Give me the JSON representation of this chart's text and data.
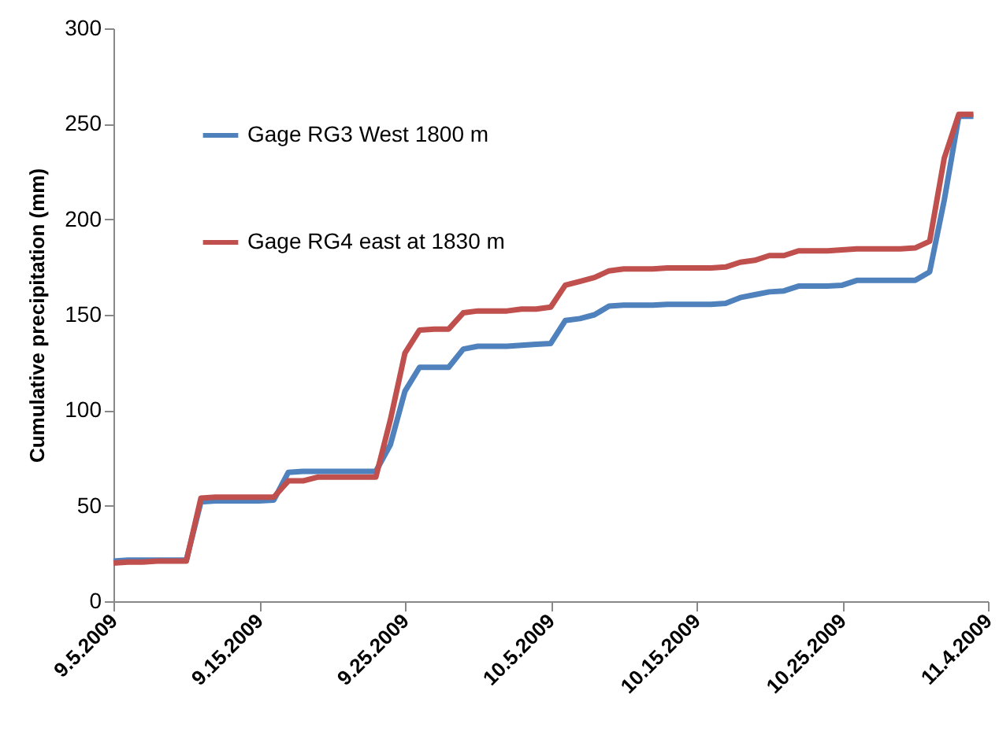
{
  "chart_data": {
    "type": "line",
    "ylabel": "Cumulative precipitation  (mm)",
    "x": [
      "2009-09-05",
      "2009-09-06",
      "2009-09-07",
      "2009-09-08",
      "2009-09-09",
      "2009-09-10",
      "2009-09-11",
      "2009-09-12",
      "2009-09-13",
      "2009-09-14",
      "2009-09-15",
      "2009-09-16",
      "2009-09-17",
      "2009-09-18",
      "2009-09-19",
      "2009-09-20",
      "2009-09-21",
      "2009-09-22",
      "2009-09-23",
      "2009-09-24",
      "2009-09-25",
      "2009-09-26",
      "2009-09-27",
      "2009-09-28",
      "2009-09-29",
      "2009-09-30",
      "2009-10-01",
      "2009-10-02",
      "2009-10-03",
      "2009-10-04",
      "2009-10-05",
      "2009-10-06",
      "2009-10-07",
      "2009-10-08",
      "2009-10-09",
      "2009-10-10",
      "2009-10-11",
      "2009-10-12",
      "2009-10-13",
      "2009-10-14",
      "2009-10-15",
      "2009-10-16",
      "2009-10-17",
      "2009-10-18",
      "2009-10-19",
      "2009-10-20",
      "2009-10-21",
      "2009-10-22",
      "2009-10-23",
      "2009-10-24",
      "2009-10-25",
      "2009-10-26",
      "2009-10-27",
      "2009-10-28",
      "2009-10-29",
      "2009-10-30",
      "2009-10-31",
      "2009-11-01",
      "2009-11-02",
      "2009-11-03"
    ],
    "series": [
      {
        "name": "Gage RG3 West 1800 m",
        "color": "#4f81bd",
        "values": [
          21,
          21.5,
          21.5,
          21.5,
          21.5,
          21.5,
          52,
          52.5,
          52.5,
          52.5,
          52.5,
          53,
          67.5,
          68,
          68,
          68,
          68,
          68,
          68,
          82,
          110,
          122.5,
          122.5,
          122.5,
          132,
          133.5,
          133.5,
          133.5,
          134,
          134.5,
          135,
          147,
          148,
          150,
          154.5,
          155,
          155,
          155,
          155.5,
          155.5,
          155.5,
          155.5,
          156,
          159,
          160.5,
          162,
          162.5,
          165,
          165,
          165,
          165.5,
          168,
          168,
          168,
          168,
          168,
          172.5,
          210,
          254,
          254
        ]
      },
      {
        "name": "Gage RG4 east at 1830 m",
        "color": "#c0504d",
        "values": [
          20,
          20.5,
          20.5,
          21,
          21,
          21,
          54,
          54.5,
          54.5,
          54.5,
          54.5,
          54.5,
          63,
          63,
          65,
          65,
          65,
          65,
          65,
          95,
          130,
          142,
          142.5,
          142.5,
          151,
          152,
          152,
          152,
          153,
          153,
          154,
          165.5,
          167.5,
          169.5,
          173,
          174,
          174,
          174,
          174.5,
          174.5,
          174.5,
          174.5,
          175,
          177.5,
          178.5,
          181,
          181,
          183.5,
          183.5,
          183.5,
          184,
          184.5,
          184.5,
          184.5,
          184.5,
          185,
          188.5,
          232,
          255,
          255
        ]
      }
    ],
    "xlim": [
      "2009-09-05",
      "2009-11-04"
    ],
    "xticks": [
      {
        "value": "2009-09-05",
        "label": "9.5.2009"
      },
      {
        "value": "2009-09-15",
        "label": "9.15.2009"
      },
      {
        "value": "2009-09-25",
        "label": "9.25.2009"
      },
      {
        "value": "2009-10-05",
        "label": "10.5.2009"
      },
      {
        "value": "2009-10-15",
        "label": "10.15.2009"
      },
      {
        "value": "2009-10-25",
        "label": "10.25.2009"
      },
      {
        "value": "2009-11-04",
        "label": "11.4.2009"
      }
    ],
    "ylim": [
      0,
      300
    ],
    "yticks": [
      0,
      50,
      100,
      150,
      200,
      250,
      300
    ],
    "grid": false,
    "legend": "top left",
    "marker": "none",
    "line_style": "solid"
  }
}
